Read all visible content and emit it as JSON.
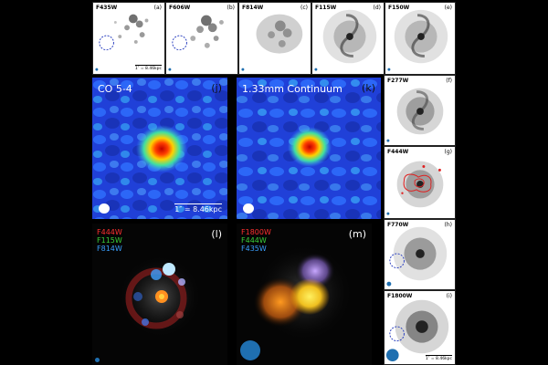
{
  "top_row": [
    {
      "filter": "F435W",
      "tag": "(a)",
      "scale": "1″ = 8.46kpc"
    },
    {
      "filter": "F606W",
      "tag": "(b)"
    },
    {
      "filter": "F814W",
      "tag": "(c)"
    },
    {
      "filter": "F115W",
      "tag": "(d)"
    },
    {
      "filter": "F150W",
      "tag": "(e)"
    }
  ],
  "right_col": [
    {
      "filter": "F277W",
      "tag": "(f)"
    },
    {
      "filter": "F444W",
      "tag": "(g)"
    },
    {
      "filter": "F770W",
      "tag": "(h)"
    },
    {
      "filter": "F1800W",
      "tag": "(i)",
      "scale": "1″ = 8.46kpc"
    }
  ],
  "big": {
    "j": {
      "title": "CO 5-4",
      "tag": "(j)",
      "scale": "1″ = 8.46kpc"
    },
    "k": {
      "title": "1.33mm Continuum",
      "tag": "(k)"
    },
    "l": {
      "tag": "(l)",
      "bands": [
        {
          "name": "F444W",
          "color": "#ff3030"
        },
        {
          "name": "F115W",
          "color": "#3ad13a"
        },
        {
          "name": "F814W",
          "color": "#3aa0ff"
        }
      ]
    },
    "m": {
      "tag": "(m)",
      "bands": [
        {
          "name": "F1800W",
          "color": "#ff3030"
        },
        {
          "name": "F444W",
          "color": "#3ad13a"
        },
        {
          "name": "F435W",
          "color": "#3aa0ff"
        }
      ]
    }
  },
  "colors": {
    "beam_dot": "#1f6fb0",
    "circle_dash": "#2a3fbf",
    "contour": "#e02020"
  }
}
